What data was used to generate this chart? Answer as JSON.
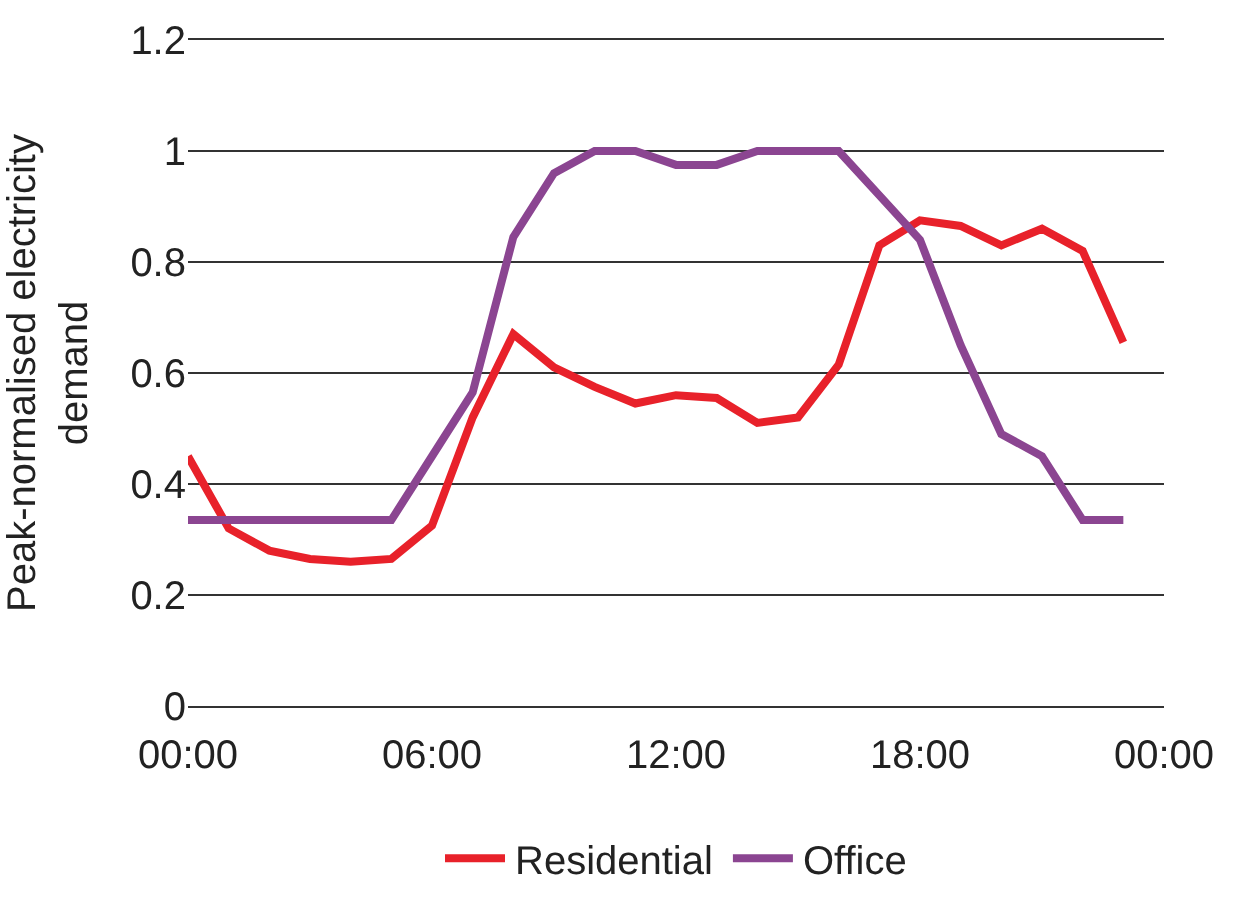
{
  "chart_data": {
    "type": "line",
    "ylabel": "Peak-normalised electricity demand",
    "x": [
      0,
      1,
      2,
      3,
      4,
      5,
      6,
      7,
      8,
      9,
      10,
      11,
      12,
      13,
      14,
      15,
      16,
      17,
      18,
      19,
      20,
      21,
      22,
      23
    ],
    "series": [
      {
        "name": "Residential",
        "color": "#e8212a",
        "values": [
          0.45,
          0.32,
          0.28,
          0.265,
          0.26,
          0.265,
          0.325,
          0.52,
          0.67,
          0.61,
          0.575,
          0.545,
          0.56,
          0.555,
          0.51,
          0.52,
          0.615,
          0.83,
          0.875,
          0.865,
          0.83,
          0.86,
          0.82,
          0.655
        ]
      },
      {
        "name": "Office",
        "color": "#8b4591",
        "values": [
          0.335,
          0.335,
          0.335,
          0.335,
          0.335,
          0.335,
          0.45,
          0.565,
          0.845,
          0.96,
          1.0,
          1.0,
          0.975,
          0.975,
          1.0,
          1.0,
          1.0,
          0.92,
          0.84,
          0.65,
          0.49,
          0.45,
          0.335,
          0.335
        ]
      }
    ],
    "xlim": [
      0,
      24
    ],
    "xticks": [
      {
        "value": 0,
        "label": "00:00"
      },
      {
        "value": 6,
        "label": "06:00"
      },
      {
        "value": 12,
        "label": "12:00"
      },
      {
        "value": 18,
        "label": "18:00"
      },
      {
        "value": 24,
        "label": "00:00"
      }
    ],
    "ylim": [
      0,
      1.2
    ],
    "yticks": [
      0,
      0.2,
      0.4,
      0.6,
      0.8,
      1,
      1.2
    ],
    "grid": "y",
    "legend": "bottom",
    "marker": "none",
    "line_style": "solid"
  }
}
